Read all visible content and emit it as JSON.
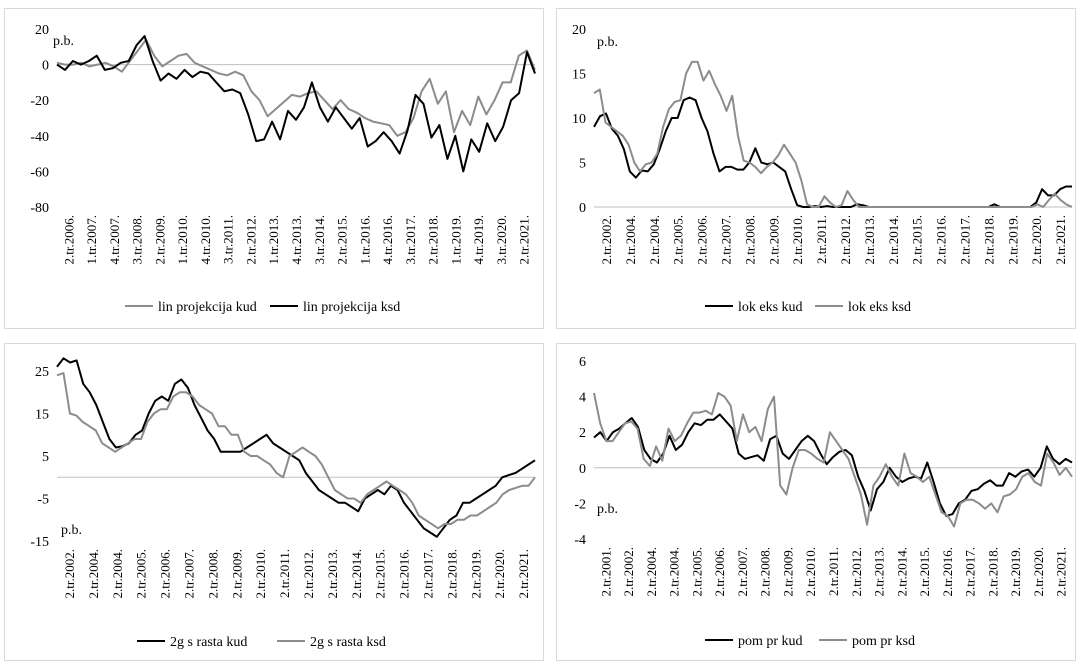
{
  "chart_data": [
    {
      "type": "line",
      "unit_label": "p.b.",
      "ylim": [
        -80,
        20
      ],
      "yticks": [
        20,
        0,
        -20,
        -40,
        -60,
        -80
      ],
      "zero_axis": 0,
      "x_ticks": [
        "2.tr.2006.",
        "1.tr.2007.",
        "4.tr.2007.",
        "3.tr.2008.",
        "2.tr.2009.",
        "1.tr.2010.",
        "4.tr.2010.",
        "3.tr.2011.",
        "2.tr.2012.",
        "1.tr.2013.",
        "4.tr.2013.",
        "3.tr.2014.",
        "2.tr.2015.",
        "1.tr.2016.",
        "4.tr.2016.",
        "3.tr.2017.",
        "2.tr.2018.",
        "1.tr.2019.",
        "4.tr.2019.",
        "3.tr.2020.",
        "2.tr.2021."
      ],
      "legend_position": "bottom",
      "series": [
        {
          "name": "lin projekcija kud",
          "color": "#8c8c8c",
          "values": [
            1,
            0,
            0,
            1,
            -1,
            0,
            1,
            -1,
            -4,
            2,
            8,
            14,
            5,
            -1,
            2,
            5,
            6,
            1,
            -1,
            -3,
            -5,
            -6,
            -4,
            -6,
            -15,
            -20,
            -29,
            -25,
            -21,
            -17,
            -18,
            -16,
            -15,
            -20,
            -25,
            -20,
            -25,
            -27,
            -30,
            -32,
            -33,
            -34,
            -40,
            -38,
            -30,
            -15,
            -8,
            -22,
            -15,
            -38,
            -26,
            -34,
            -18,
            -28,
            -20,
            -10,
            -10,
            5,
            8,
            -3
          ]
        },
        {
          "name": "lin projekcija ksd",
          "color": "#000000",
          "values": [
            0,
            -3,
            2,
            0,
            2,
            5,
            -3,
            -2,
            1,
            2,
            11,
            16,
            2,
            -9,
            -5,
            -8,
            -3,
            -7,
            -4,
            -5,
            -10,
            -15,
            -14,
            -16,
            -28,
            -43,
            -42,
            -32,
            -42,
            -26,
            -31,
            -24,
            -10,
            -24,
            -32,
            -24,
            -30,
            -36,
            -30,
            -46,
            -43,
            -38,
            -43,
            -50,
            -37,
            -17,
            -22,
            -41,
            -34,
            -53,
            -40,
            -60,
            -42,
            -49,
            -33,
            -43,
            -35,
            -20,
            -16,
            7,
            -5
          ]
        }
      ]
    },
    {
      "type": "line",
      "unit_label": "p.b.",
      "ylim": [
        0,
        20
      ],
      "yticks": [
        20,
        15,
        10,
        5,
        0
      ],
      "x_ticks": [
        "2.tr.2002.",
        "2.tr.2004.",
        "2.tr.2004.",
        "2.tr.2005.",
        "2.tr.2006.",
        "2.tr.2007.",
        "2.tr.2008.",
        "2.tr.2009.",
        "2.tr.2010.",
        "2.tr.2011.",
        "2.tr.2012.",
        "2.tr.2013.",
        "2.tr.2014.",
        "2.tr.2015.",
        "2.tr.2016.",
        "2.tr.2017.",
        "2.tr.2018.",
        "2.tr.2019.",
        "2.tr.2020.",
        "2.tr.2021."
      ],
      "legend_position": "bottom",
      "series": [
        {
          "name": "lok eks kud",
          "color": "#000000",
          "values": [
            9,
            10.2,
            10.5,
            8.8,
            8,
            6.5,
            4,
            3.3,
            4.1,
            4,
            4.8,
            6.5,
            8.5,
            10,
            10,
            12,
            12.3,
            12,
            10,
            8.5,
            6,
            4,
            4.5,
            4.5,
            4.2,
            4.2,
            5,
            6.6,
            5,
            4.8,
            5,
            4.5,
            4,
            2,
            0.2,
            0,
            0,
            0.1,
            0,
            0.1,
            0,
            0,
            0,
            0,
            0.3,
            0.2,
            0,
            0,
            0,
            0,
            0,
            0,
            0,
            0,
            0,
            0,
            0,
            0,
            0,
            0,
            0,
            0,
            0,
            0,
            0,
            0,
            0,
            0.3,
            0,
            0,
            0,
            0,
            0,
            0,
            0.5,
            2,
            1.3,
            1.3,
            2,
            2.3,
            2.3
          ]
        },
        {
          "name": "lok eks ksd",
          "color": "#8c8c8c",
          "values": [
            12.8,
            13.2,
            9.5,
            9,
            8.5,
            8,
            7,
            5,
            4,
            4.8,
            5,
            6,
            9,
            11,
            11.8,
            12,
            15,
            16.3,
            16.3,
            14.2,
            15.3,
            13.8,
            12.5,
            10.8,
            12.5,
            8,
            5.2,
            5,
            4.5,
            3.8,
            4.5,
            5,
            5.8,
            7,
            6,
            5,
            3,
            0.3,
            0,
            0,
            1.2,
            0.5,
            0,
            0.2,
            1.8,
            0.8,
            0,
            0,
            0,
            0,
            0,
            0,
            0,
            0,
            0,
            0,
            0,
            0,
            0,
            0,
            0,
            0,
            0,
            0,
            0,
            0,
            0,
            0,
            0,
            0,
            0,
            0,
            0,
            0,
            0,
            0,
            0,
            0.3,
            0,
            0.8,
            1.5,
            0.8,
            0.3,
            0
          ]
        }
      ]
    },
    {
      "type": "line",
      "unit_label": "p.b.",
      "ylim": [
        -15,
        25
      ],
      "yticks": [
        25,
        15,
        5,
        -5,
        -15
      ],
      "zero_axis": 0,
      "x_ticks": [
        "2.tr.2002.",
        "2.tr.2004.",
        "2.tr.2004.",
        "2.tr.2005.",
        "2.tr.2006.",
        "2.tr.2007.",
        "2.tr.2008.",
        "2.tr.2009.",
        "2.tr.2010.",
        "2.tr.2011.",
        "2.tr.2012.",
        "2.tr.2013.",
        "2.tr.2014.",
        "2.tr.2015.",
        "2.tr.2016.",
        "2.tr.2017.",
        "2.tr.2018.",
        "2.tr.2019.",
        "2.tr.2020.",
        "2.tr.2021."
      ],
      "legend_position": "bottom",
      "series": [
        {
          "name": "2g s rasta kud",
          "color": "#000000",
          "values": [
            26,
            28,
            27,
            27.5,
            22,
            20,
            17,
            13,
            9,
            7,
            7.3,
            8,
            10,
            11,
            15,
            18,
            19,
            18,
            22,
            23,
            21,
            17,
            14,
            11,
            9,
            6,
            6,
            6,
            6,
            7,
            8,
            9,
            10,
            8,
            7,
            6,
            5,
            4,
            1,
            -1,
            -3,
            -4,
            -5,
            -6,
            -6,
            -7,
            -8,
            -5,
            -4,
            -3,
            -4,
            -2,
            -3,
            -6,
            -8,
            -10,
            -12,
            -13,
            -14,
            -12,
            -10,
            -9,
            -6,
            -6,
            -5,
            -4,
            -3,
            -2,
            0,
            0.5,
            1,
            2,
            3,
            4
          ]
        },
        {
          "name": "2g s rasta ksd",
          "color": "#8c8c8c",
          "values": [
            24,
            24.5,
            15,
            14.5,
            13,
            12,
            11,
            8,
            7,
            6,
            7,
            8,
            9,
            9,
            13,
            15,
            16,
            16,
            19,
            20,
            20,
            19,
            17,
            16,
            15,
            12,
            12,
            10,
            10,
            6,
            5,
            5,
            4,
            3,
            1,
            0,
            5,
            6,
            7,
            6,
            5,
            3,
            0,
            -3,
            -4,
            -5,
            -5,
            -6,
            -4,
            -3,
            -2,
            -1,
            -2,
            -3,
            -4,
            -6,
            -9,
            -10,
            -11,
            -12,
            -11,
            -11,
            -10,
            -10,
            -9,
            -9,
            -8,
            -7,
            -6,
            -4,
            -3,
            -2.5,
            -2,
            -2,
            0
          ]
        }
      ]
    },
    {
      "type": "line",
      "unit_label": "p.b.",
      "ylim": [
        -4,
        6
      ],
      "yticks": [
        6,
        4,
        2,
        0,
        -2,
        -4
      ],
      "zero_axis": 0,
      "x_ticks": [
        "2.tr.2001.",
        "2.tr.2002.",
        "2.tr.2004.",
        "2.tr.2004.",
        "2.tr.2005.",
        "2.tr.2006.",
        "2.tr.2007.",
        "2.tr.2008.",
        "2.tr.2009.",
        "2.tr.2010.",
        "2.tr.2011.",
        "2.tr.2012.",
        "2.tr.2013.",
        "2.tr.2014.",
        "2.tr.2015.",
        "2.tr.2016.",
        "2.tr.2017.",
        "2.tr.2018.",
        "2.tr.2019.",
        "2.tr.2020.",
        "2.tr.2021."
      ],
      "legend_position": "bottom",
      "series": [
        {
          "name": "pom pr kud",
          "color": "#000000",
          "values": [
            1.7,
            2,
            1.5,
            2,
            2.2,
            2.5,
            2.8,
            2.3,
            1,
            0.5,
            0.3,
            0.8,
            1.8,
            1,
            1.3,
            2,
            2.5,
            2.4,
            2.7,
            2.7,
            3,
            2.6,
            2.2,
            0.8,
            0.5,
            0.6,
            0.7,
            0.4,
            1.6,
            1.8,
            0.8,
            0.5,
            1,
            1.5,
            1.8,
            1.5,
            0.8,
            0.2,
            0.6,
            0.9,
            1,
            0.7,
            -0.5,
            -1.3,
            -2.4,
            -1.2,
            -0.8,
            0,
            -0.5,
            -0.8,
            -0.6,
            -0.5,
            -0.6,
            0.3,
            -0.8,
            -2,
            -2.7,
            -2.6,
            -2,
            -1.8,
            -1.3,
            -1.2,
            -0.9,
            -0.7,
            -1,
            -1,
            -0.3,
            -0.5,
            -0.2,
            -0.1,
            -0.5,
            0,
            1.2,
            0.5,
            0.2,
            0.5,
            0.3
          ]
        },
        {
          "name": "pom pr ksd",
          "color": "#8c8c8c",
          "values": [
            4.2,
            2.5,
            1.5,
            1.5,
            2,
            2.5,
            2.6,
            2.2,
            0.5,
            0.1,
            1.2,
            0.4,
            2.2,
            1.5,
            1.8,
            2.5,
            3.1,
            3.1,
            3.2,
            3,
            4.2,
            4,
            3.5,
            1.5,
            3,
            2,
            2.3,
            1.5,
            3.3,
            4,
            -1,
            -1.5,
            0,
            1,
            1,
            0.8,
            0.5,
            0.3,
            2,
            1.5,
            1,
            0.5,
            -0.5,
            -1.5,
            -3.2,
            -1,
            -0.5,
            0.2,
            -0.5,
            -1,
            0.8,
            -0.3,
            -0.5,
            -0.8,
            -0.5,
            -1.5,
            -2.5,
            -2.7,
            -3.3,
            -2,
            -1.8,
            -1.8,
            -2,
            -2.3,
            -2,
            -2.5,
            -1.6,
            -1.5,
            -1.2,
            -0.5,
            -0.3,
            -0.8,
            -1,
            0.8,
            0.3,
            -0.4,
            0,
            -0.5
          ]
        }
      ]
    }
  ]
}
